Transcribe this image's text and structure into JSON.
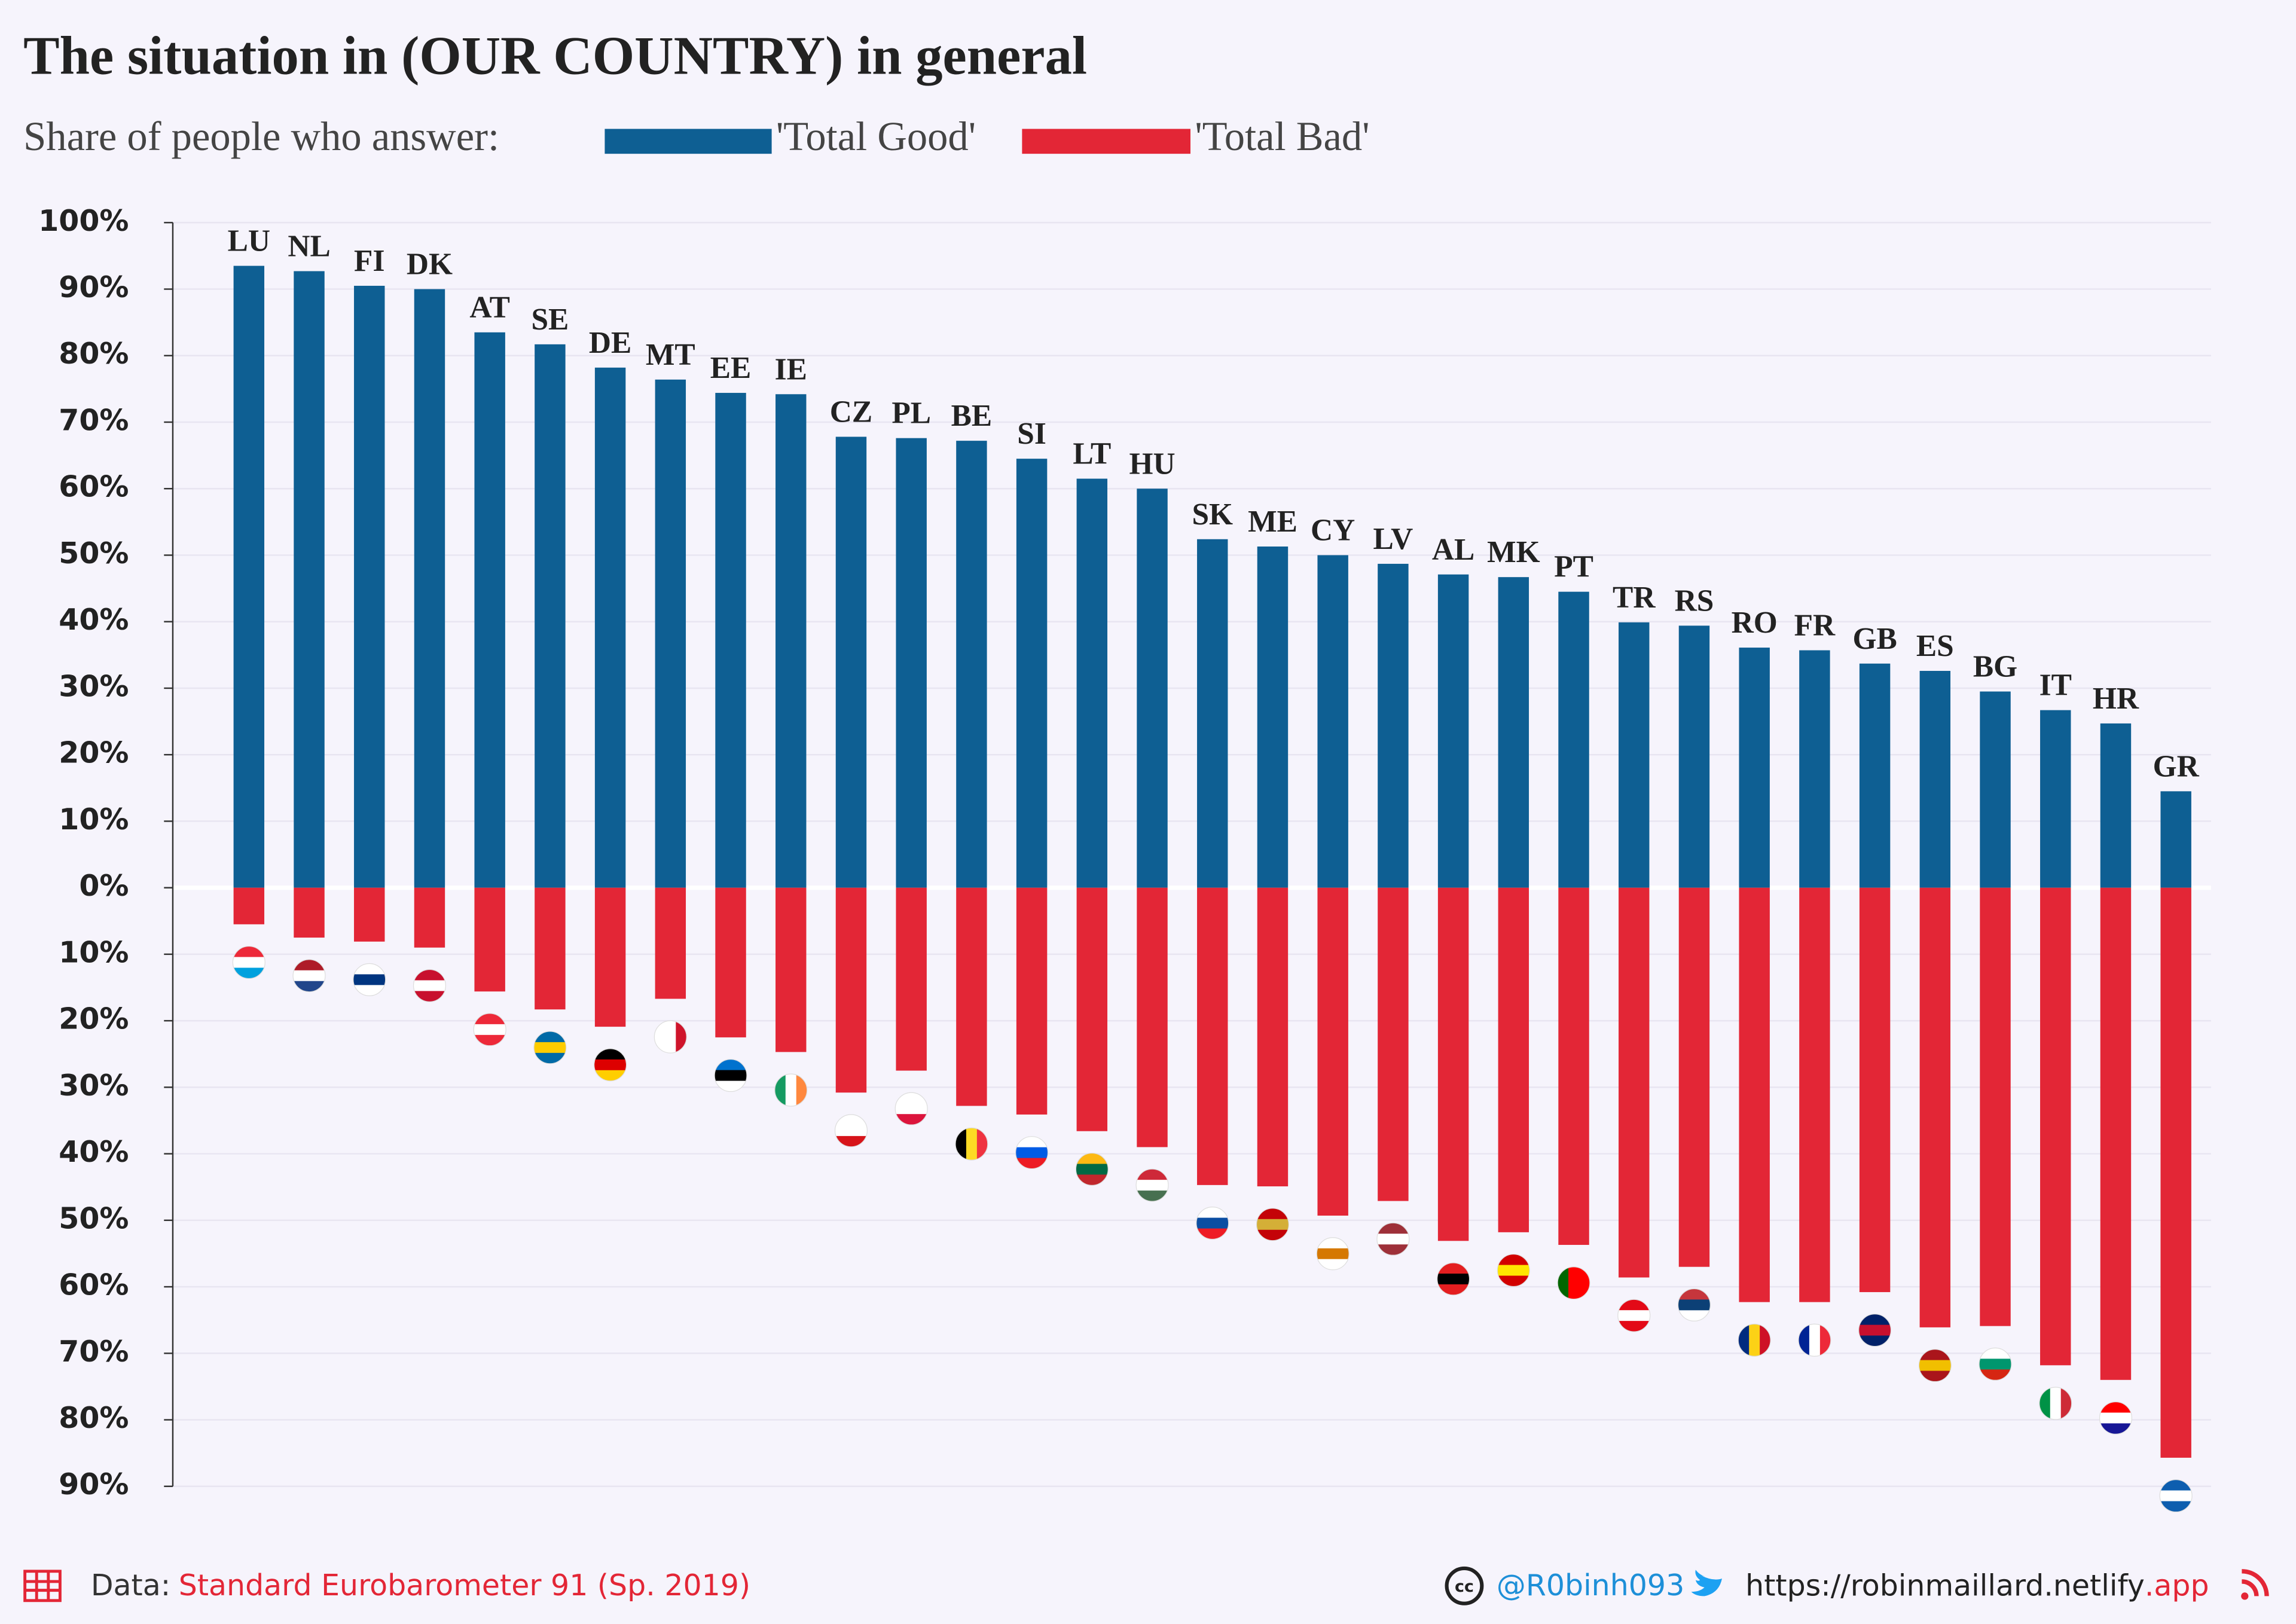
{
  "chart_data": {
    "type": "diverging-bar",
    "title": "The situation in (OUR COUNTRY) in general",
    "subtitle": "Share of people who answer:",
    "categories": [
      "LU",
      "NL",
      "FI",
      "DK",
      "AT",
      "SE",
      "DE",
      "MT",
      "EE",
      "IE",
      "CZ",
      "PL",
      "BE",
      "SI",
      "LT",
      "HU",
      "SK",
      "ME",
      "CY",
      "LV",
      "AL",
      "MK",
      "PT",
      "TR",
      "RS",
      "RO",
      "FR",
      "GB",
      "ES",
      "BG",
      "IT",
      "HR",
      "GR"
    ],
    "series": [
      {
        "name": "'Total Good'",
        "color": "#0e5f93",
        "direction": "up",
        "values": [
          93.5,
          92.7,
          90.5,
          90,
          83.5,
          81.7,
          78.2,
          76.4,
          74.4,
          74.2,
          67.8,
          67.6,
          67.2,
          64.5,
          61.5,
          60,
          52.4,
          51.3,
          50,
          48.7,
          47.1,
          46.7,
          44.5,
          39.9,
          39.4,
          36.1,
          35.7,
          33.7,
          32.6,
          29.5,
          26.7,
          24.7,
          14.5
        ]
      },
      {
        "name": "'Total Bad'",
        "color": "#e32636",
        "direction": "down",
        "values": [
          5.5,
          7.5,
          8.1,
          9,
          15.6,
          18.3,
          20.9,
          16.7,
          22.5,
          24.7,
          30.8,
          27.5,
          32.8,
          34.1,
          36.6,
          39,
          44.7,
          44.9,
          49.3,
          47.1,
          53.1,
          51.8,
          53.7,
          58.6,
          57,
          62.3,
          62.3,
          60.8,
          66.1,
          65.9,
          71.8,
          74,
          85.7
        ]
      }
    ],
    "ylim": [
      -90,
      100
    ],
    "yticks": [
      {
        "value": 100,
        "label": "100%"
      },
      {
        "value": 90,
        "label": "90%"
      },
      {
        "value": 80,
        "label": "80%"
      },
      {
        "value": 70,
        "label": "70%"
      },
      {
        "value": 60,
        "label": "60%"
      },
      {
        "value": 50,
        "label": "50%"
      },
      {
        "value": 40,
        "label": "40%"
      },
      {
        "value": 30,
        "label": "30%"
      },
      {
        "value": 20,
        "label": "20%"
      },
      {
        "value": 10,
        "label": "10%"
      },
      {
        "value": 0,
        "label": "0%"
      },
      {
        "value": -10,
        "label": "10%"
      },
      {
        "value": -20,
        "label": "20%"
      },
      {
        "value": -30,
        "label": "30%"
      },
      {
        "value": -40,
        "label": "40%"
      },
      {
        "value": -50,
        "label": "50%"
      },
      {
        "value": -60,
        "label": "60%"
      },
      {
        "value": -70,
        "label": "70%"
      },
      {
        "value": -80,
        "label": "80%"
      },
      {
        "value": -90,
        "label": "90%"
      }
    ],
    "grid": true,
    "source_label": "Data:",
    "source": "Standard Eurobarometer 91 (Sp. 2019)",
    "credit": "@R0binh093",
    "url": "https://robinmaillard.netlify",
    "url_suffix": ".app"
  }
}
